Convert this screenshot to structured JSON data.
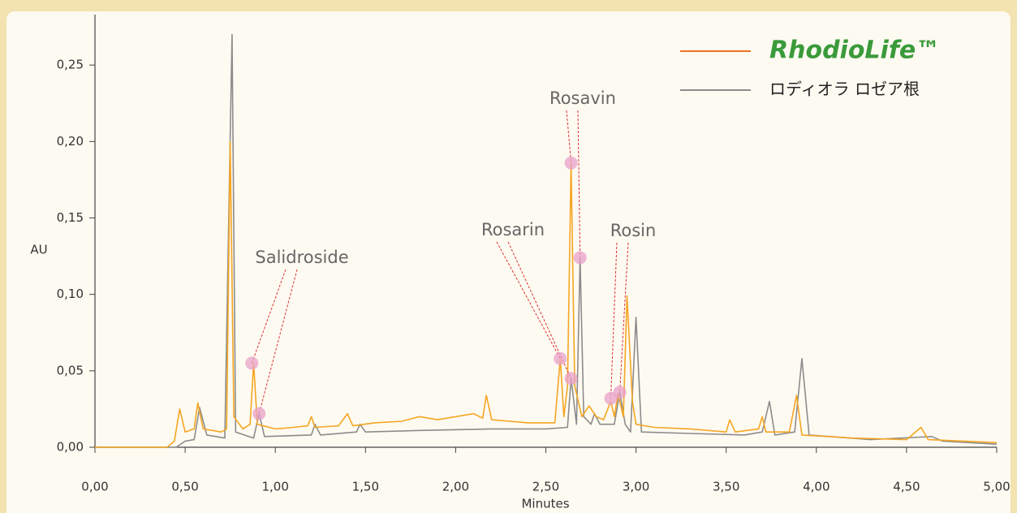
{
  "chart_data": {
    "type": "line",
    "ylabel": "AU",
    "xlabel": "Minutes",
    "xlim": [
      0,
      5
    ],
    "ylim": [
      0,
      0.283
    ],
    "xticks": [
      {
        "value": 0,
        "label": "0,00"
      },
      {
        "value": 0.5,
        "label": "0,50"
      },
      {
        "value": 1,
        "label": "1,00"
      },
      {
        "value": 1.5,
        "label": "1,50"
      },
      {
        "value": 2,
        "label": "2,00"
      },
      {
        "value": 2.5,
        "label": "2,50"
      },
      {
        "value": 3,
        "label": "3,00"
      },
      {
        "value": 3.5,
        "label": "3,50"
      },
      {
        "value": 4,
        "label": "4,00"
      },
      {
        "value": 4.5,
        "label": "4,50"
      },
      {
        "value": 5,
        "label": "5,00"
      }
    ],
    "yticks": [
      {
        "value": 0,
        "label": "0,00"
      },
      {
        "value": 0.05,
        "label": "0,05"
      },
      {
        "value": 0.1,
        "label": "0,10"
      },
      {
        "value": 0.15,
        "label": "0,15"
      },
      {
        "value": 0.2,
        "label": "0,20"
      },
      {
        "value": 0.25,
        "label": "0,25"
      }
    ],
    "series": [
      {
        "name": "RhodioLife™",
        "color": "#f5a623",
        "x": [
          0,
          0.4,
          0.44,
          0.47,
          0.5,
          0.55,
          0.57,
          0.6,
          0.7,
          0.73,
          0.75,
          0.77,
          0.82,
          0.86,
          0.88,
          0.9,
          1.0,
          1.1,
          1.18,
          1.2,
          1.22,
          1.35,
          1.4,
          1.43,
          1.55,
          1.7,
          1.8,
          1.9,
          2.0,
          2.1,
          2.15,
          2.17,
          2.2,
          2.4,
          2.55,
          2.58,
          2.6,
          2.62,
          2.64,
          2.66,
          2.68,
          2.7,
          2.74,
          2.78,
          2.82,
          2.86,
          2.88,
          2.9,
          2.93,
          2.95,
          2.98,
          3.0,
          3.1,
          3.3,
          3.5,
          3.52,
          3.55,
          3.68,
          3.7,
          3.72,
          3.85,
          3.89,
          3.92,
          4.2,
          4.5,
          4.58,
          4.62,
          5.0
        ],
        "values": [
          0,
          0,
          0.004,
          0.025,
          0.01,
          0.012,
          0.029,
          0.012,
          0.01,
          0.012,
          0.2,
          0.02,
          0.012,
          0.015,
          0.055,
          0.015,
          0.012,
          0.013,
          0.014,
          0.02,
          0.013,
          0.014,
          0.022,
          0.014,
          0.016,
          0.017,
          0.02,
          0.018,
          0.02,
          0.022,
          0.019,
          0.034,
          0.018,
          0.016,
          0.016,
          0.058,
          0.02,
          0.04,
          0.186,
          0.04,
          0.03,
          0.02,
          0.027,
          0.02,
          0.018,
          0.03,
          0.02,
          0.035,
          0.02,
          0.099,
          0.03,
          0.015,
          0.013,
          0.012,
          0.01,
          0.018,
          0.01,
          0.012,
          0.02,
          0.01,
          0.01,
          0.034,
          0.008,
          0.006,
          0.005,
          0.013,
          0.005,
          0.003
        ]
      },
      {
        "name": "ロディオラ ロゼア根",
        "color": "#8c8c8c",
        "x": [
          0,
          0.45,
          0.5,
          0.55,
          0.58,
          0.62,
          0.72,
          0.76,
          0.78,
          0.88,
          0.91,
          0.94,
          1.2,
          1.22,
          1.25,
          1.45,
          1.47,
          1.5,
          1.8,
          2.2,
          2.5,
          2.62,
          2.64,
          2.67,
          2.69,
          2.71,
          2.75,
          2.77,
          2.8,
          2.88,
          2.91,
          2.94,
          2.97,
          3.0,
          3.03,
          3.3,
          3.6,
          3.7,
          3.74,
          3.77,
          3.88,
          3.92,
          3.96,
          4.3,
          4.64,
          4.7,
          5.0
        ],
        "values": [
          0,
          0,
          0.004,
          0.005,
          0.026,
          0.008,
          0.006,
          0.27,
          0.01,
          0.006,
          0.022,
          0.007,
          0.008,
          0.015,
          0.008,
          0.01,
          0.015,
          0.01,
          0.011,
          0.012,
          0.012,
          0.013,
          0.045,
          0.015,
          0.124,
          0.02,
          0.015,
          0.022,
          0.015,
          0.015,
          0.036,
          0.015,
          0.01,
          0.085,
          0.01,
          0.009,
          0.008,
          0.01,
          0.03,
          0.008,
          0.01,
          0.058,
          0.008,
          0.005,
          0.007,
          0.004,
          0.002
        ]
      }
    ],
    "annotations": [
      {
        "text": "Salidroside",
        "x": [
          0.87,
          0.91
        ],
        "y": [
          0.055,
          0.022
        ]
      },
      {
        "text": "Rosarin",
        "x": [
          2.58,
          2.64
        ],
        "y": [
          0.058,
          0.045
        ]
      },
      {
        "text": "Rosavin",
        "x": [
          2.64,
          2.69
        ],
        "y": [
          0.186,
          0.124
        ]
      },
      {
        "text": "Rosin",
        "x": [
          2.86,
          2.91
        ],
        "y": [
          0.032,
          0.036
        ]
      }
    ]
  }
}
